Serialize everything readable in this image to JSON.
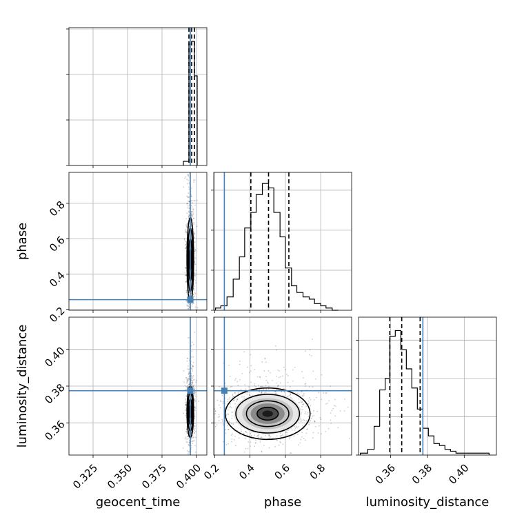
{
  "chart_data": {
    "type": "corner",
    "parameters": [
      {
        "name": "geocent_time",
        "ticks": [
          "0.325",
          "0.350",
          "0.375",
          "0.400"
        ],
        "tick_values": [
          0.325,
          0.35,
          0.375,
          0.4
        ],
        "range": [
          0.3075,
          0.4075
        ],
        "truth": 0.3955,
        "quantiles": [
          0.3945,
          0.3965,
          0.3985
        ],
        "hist_bins": [
          0.3905,
          0.3945,
          0.3965,
          0.3985,
          0.4005
        ],
        "hist_counts": [
          3,
          88,
          90,
          65
        ],
        "hist_ymax": 100
      },
      {
        "name": "phase",
        "ticks": [
          "0.2",
          "0.4",
          "0.6",
          "0.8"
        ],
        "tick_values": [
          0.2,
          0.4,
          0.6,
          0.8
        ],
        "range": [
          0.195,
          0.975
        ],
        "truth": 0.255,
        "quantiles": [
          0.405,
          0.505,
          0.62
        ],
        "hist_bins": [
          0.205,
          0.235,
          0.27,
          0.305,
          0.34,
          0.37,
          0.405,
          0.435,
          0.47,
          0.505,
          0.535,
          0.57,
          0.6,
          0.635,
          0.665,
          0.7,
          0.735,
          0.765,
          0.8,
          0.83,
          0.865,
          0.9
        ],
        "hist_counts": [
          1,
          2,
          6,
          14,
          24,
          37,
          44,
          52,
          57,
          55,
          44,
          33,
          19,
          11,
          8,
          6,
          5,
          3,
          2,
          1,
          0
        ],
        "hist_ymax": 62,
        "hist_yticks": [
          0,
          18,
          36,
          54
        ]
      },
      {
        "name": "luminosity_distance",
        "ticks": [
          "0.36",
          "0.38",
          "0.40"
        ],
        "tick_values": [
          0.36,
          0.38,
          0.4
        ],
        "range": [
          0.3425,
          0.4175
        ],
        "truth": 0.3775,
        "quantiles": [
          0.3595,
          0.366,
          0.376
        ],
        "hist_bins": [
          0.3435,
          0.3475,
          0.351,
          0.354,
          0.357,
          0.3595,
          0.3625,
          0.3655,
          0.3685,
          0.3715,
          0.3745,
          0.3775,
          0.3805,
          0.3835,
          0.3865,
          0.3895,
          0.3925,
          0.3955,
          0.3985,
          0.4135
        ],
        "hist_counts": [
          1,
          3,
          15,
          34,
          40,
          62,
          65,
          55,
          45,
          35,
          24,
          14,
          10,
          6,
          5,
          3,
          2,
          1,
          1
        ],
        "hist_ymax": 72,
        "hist_yticks": [
          0,
          20,
          40,
          60
        ]
      }
    ],
    "pairs": [
      {
        "x": "geocent_time",
        "y": "phase",
        "center": [
          0.3955,
          0.48
        ],
        "spread": [
          0.0012,
          0.12
        ],
        "truth": [
          0.3955,
          0.255
        ]
      },
      {
        "x": "geocent_time",
        "y": "luminosity_distance",
        "center": [
          0.3955,
          0.366
        ],
        "spread": [
          0.0012,
          0.007
        ],
        "truth": [
          0.3955,
          0.3775
        ]
      },
      {
        "x": "phase",
        "y": "luminosity_distance",
        "center": [
          0.5,
          0.365
        ],
        "spread": [
          0.12,
          0.007
        ],
        "truth": [
          0.255,
          0.3775
        ]
      }
    ],
    "top_hist_yticks": [
      0,
      33,
      66,
      99
    ],
    "truth_color": "#4682b4",
    "quantile_style": "dashed",
    "grid": true
  }
}
